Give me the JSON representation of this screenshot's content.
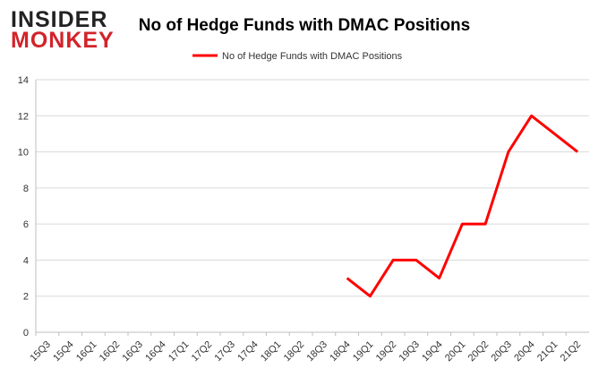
{
  "logo": {
    "line1": "INSIDER",
    "line2": "MONKEY"
  },
  "chart_data": {
    "type": "line",
    "title": "No of Hedge Funds with DMAC Positions",
    "categories": [
      "15Q3",
      "15Q4",
      "16Q1",
      "16Q2",
      "16Q3",
      "16Q4",
      "17Q1",
      "17Q2",
      "17Q3",
      "17Q4",
      "18Q1",
      "18Q2",
      "18Q3",
      "18Q4",
      "19Q1",
      "19Q2",
      "19Q3",
      "19Q4",
      "20Q1",
      "20Q2",
      "20Q3",
      "20Q4",
      "21Q1",
      "21Q2"
    ],
    "series": [
      {
        "name": "No of Hedge Funds with DMAC Positions",
        "color": "#ff0000",
        "values": [
          null,
          null,
          null,
          null,
          null,
          null,
          null,
          null,
          null,
          null,
          null,
          null,
          null,
          3,
          2,
          4,
          4,
          3,
          6,
          6,
          10,
          12,
          11,
          10
        ]
      }
    ],
    "ylim": [
      0,
      14
    ],
    "yticks": [
      0,
      2,
      4,
      6,
      8,
      10,
      12,
      14
    ],
    "grid": true,
    "legend": "top"
  }
}
